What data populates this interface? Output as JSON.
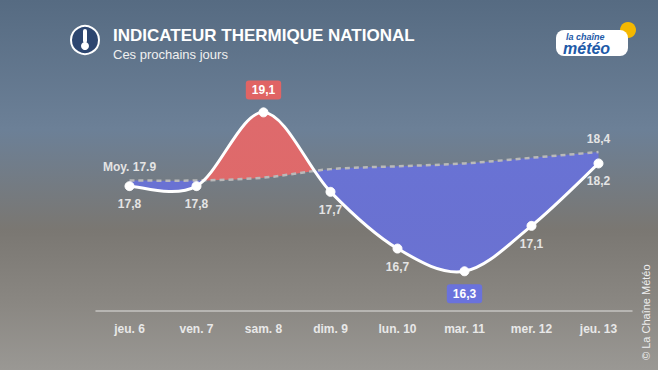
{
  "chart_data": {
    "type": "line",
    "title": "INDICATEUR THERMIQUE NATIONAL",
    "subtitle": "Ces prochains jours",
    "categories": [
      "jeu. 6",
      "ven. 7",
      "sam. 8",
      "dim. 9",
      "lun. 10",
      "mar. 11",
      "mer. 12",
      "jeu. 13"
    ],
    "series": [
      {
        "values": [
          17.8,
          17.8,
          19.1,
          17.7,
          16.7,
          16.3,
          17.1,
          18.2
        ],
        "value_labels": [
          "17,8",
          "17,8",
          "19,1",
          "17,7",
          "16,7",
          "16,3",
          "17,1",
          "18,2"
        ],
        "color": "#ffffff",
        "marker": "circle",
        "line_style": "solid"
      },
      {
        "values": [
          17.9,
          17.9,
          17.95,
          18.1,
          18.15,
          18.2,
          18.3,
          18.4
        ],
        "value_labels": [
          "Moy. 17.9",
          null,
          null,
          null,
          null,
          null,
          null,
          "18,4"
        ],
        "color": "#b9b9b9",
        "line_style": "dashed"
      }
    ],
    "ylim": [
      15.6,
      19.6
    ],
    "grid": false,
    "data_labels": true,
    "tick_labels": "x",
    "annotations": {
      "logo": [
        "la chaîne",
        "météo"
      ],
      "credit": "© La Chaîne Météo"
    }
  }
}
